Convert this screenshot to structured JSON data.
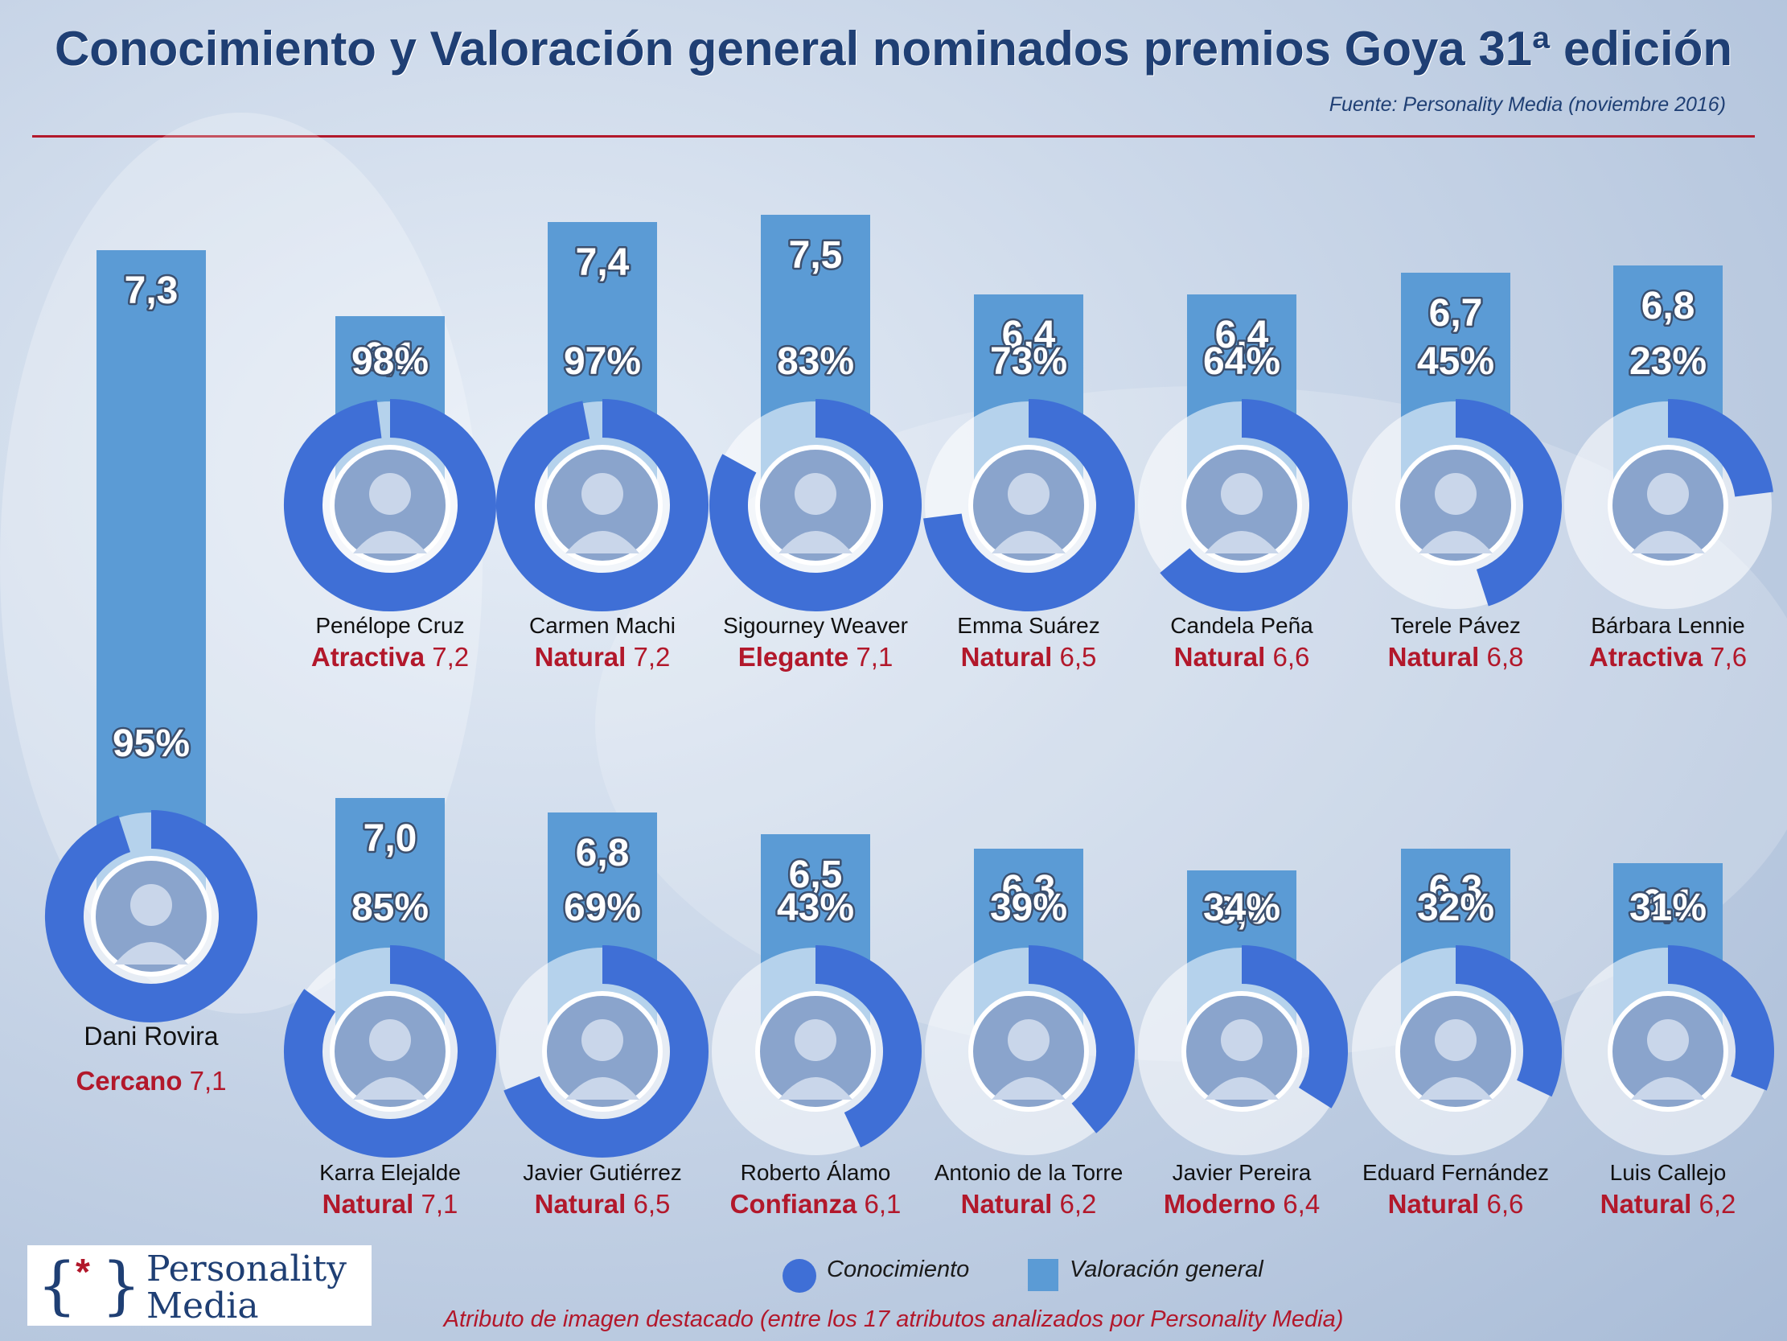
{
  "chart_data": {
    "type": "bar",
    "title": "Conocimiento y Valoración general nominados premios Goya 31ª edición",
    "source": "Fuente: Personality Media (noviembre 2016)",
    "legend": {
      "conocimiento": "Conocimiento",
      "valoracion": "Valoración general"
    },
    "footnote": "Atributo de imagen destacado (entre los 17 atributos analizados por Personality Media)",
    "rating_scale": [
      0,
      10
    ],
    "colors": {
      "bar": "#5b9bd5",
      "ring": "#3f6fd6",
      "attribute": "#b2182b",
      "title": "#1f3f74"
    },
    "series": [
      {
        "name": "Dani Rovira",
        "valoracion": "7,3",
        "rating": 7.3,
        "conocimiento": "95%",
        "know": 95,
        "attr": "Cercano",
        "attr_val": "7,1"
      },
      {
        "name": "Penélope Cruz",
        "valoracion": "6,1",
        "rating": 6.1,
        "conocimiento": "98%",
        "know": 98,
        "attr": "Atractiva",
        "attr_val": "7,2"
      },
      {
        "name": "Carmen Machi",
        "valoracion": "7,4",
        "rating": 7.4,
        "conocimiento": "97%",
        "know": 97,
        "attr": "Natural",
        "attr_val": "7,2"
      },
      {
        "name": "Sigourney Weaver",
        "valoracion": "7,5",
        "rating": 7.5,
        "conocimiento": "83%",
        "know": 83,
        "attr": "Elegante",
        "attr_val": "7,1"
      },
      {
        "name": "Emma Suárez",
        "valoracion": "6,4",
        "rating": 6.4,
        "conocimiento": "73%",
        "know": 73,
        "attr": "Natural",
        "attr_val": "6,5"
      },
      {
        "name": "Candela Peña",
        "valoracion": "6,4",
        "rating": 6.4,
        "conocimiento": "64%",
        "know": 64,
        "attr": "Natural",
        "attr_val": "6,6"
      },
      {
        "name": "Terele Pávez",
        "valoracion": "6,7",
        "rating": 6.7,
        "conocimiento": "45%",
        "know": 45,
        "attr": "Natural",
        "attr_val": "6,8"
      },
      {
        "name": "Bárbara Lennie",
        "valoracion": "6,8",
        "rating": 6.8,
        "conocimiento": "23%",
        "know": 23,
        "attr": "Atractiva",
        "attr_val": "7,6"
      },
      {
        "name": "Karra Elejalde",
        "valoracion": "7,0",
        "rating": 7.0,
        "conocimiento": "85%",
        "know": 85,
        "attr": "Natural",
        "attr_val": "7,1"
      },
      {
        "name": "Javier Gutiérrez",
        "valoracion": "6,8",
        "rating": 6.8,
        "conocimiento": "69%",
        "know": 69,
        "attr": "Natural",
        "attr_val": "6,5"
      },
      {
        "name": "Roberto Álamo",
        "valoracion": "6,5",
        "rating": 6.5,
        "conocimiento": "43%",
        "know": 43,
        "attr": "Confianza",
        "attr_val": "6,1"
      },
      {
        "name": "Antonio de la Torre",
        "valoracion": "6,3",
        "rating": 6.3,
        "conocimiento": "39%",
        "know": 39,
        "attr": "Natural",
        "attr_val": "6,2"
      },
      {
        "name": "Javier Pereira",
        "valoracion": "6,0",
        "rating": 6.0,
        "conocimiento": "34%",
        "know": 34,
        "attr": "Moderno",
        "attr_val": "6,4"
      },
      {
        "name": "Eduard Fernández",
        "valoracion": "6,3",
        "rating": 6.3,
        "conocimiento": "32%",
        "know": 32,
        "attr": "Natural",
        "attr_val": "6,6"
      },
      {
        "name": "Luis Callejo",
        "valoracion": "6,1",
        "rating": 6.1,
        "conocimiento": "31%",
        "know": 31,
        "attr": "Natural",
        "attr_val": "6,2"
      }
    ]
  },
  "logo": {
    "mark": "{*}",
    "line1": "Personality",
    "line2": "Media"
  }
}
